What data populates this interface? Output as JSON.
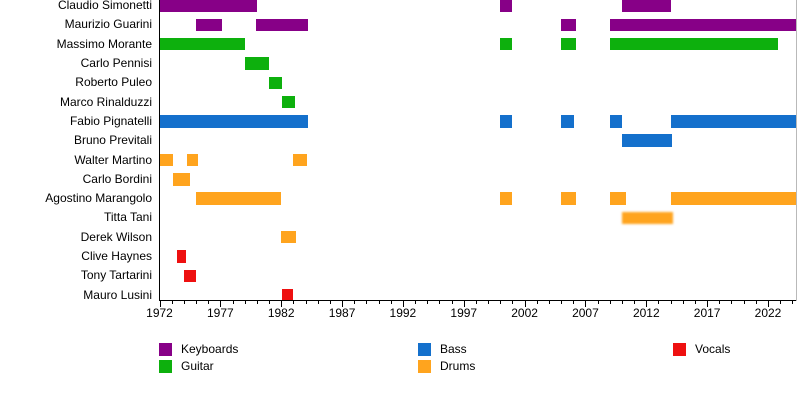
{
  "chart_data": {
    "type": "bar",
    "subtype": "band-membership-gantt-timeline",
    "title": "",
    "xlabel": "",
    "ylabel": "",
    "grid": false,
    "legend_position": "bottom",
    "x_axis": {
      "min": 1972,
      "max": 2024.3,
      "tick_years": [
        1972,
        1977,
        1982,
        1987,
        1992,
        1997,
        2002,
        2007,
        2012,
        2017,
        2022
      ],
      "minor_tick_step": 1
    },
    "colors": {
      "keyboards": "#870087",
      "guitar": "#0db00d",
      "bass": "#1470cc",
      "drums": "#ffa41e",
      "vocals": "#ee1010"
    },
    "legend": [
      {
        "label": "Keyboards",
        "instrument": "keyboards"
      },
      {
        "label": "Guitar",
        "instrument": "guitar"
      },
      {
        "label": "Bass",
        "instrument": "bass"
      },
      {
        "label": "Drums",
        "instrument": "drums"
      },
      {
        "label": "Vocals",
        "instrument": "vocals"
      }
    ],
    "members": [
      {
        "name": "Claudio Simonetti",
        "instrument": "keyboards",
        "periods": [
          [
            1972,
            1980
          ],
          [
            2000,
            2001
          ],
          [
            2010,
            2014
          ]
        ]
      },
      {
        "name": "Maurizio Guarini",
        "instrument": "keyboards",
        "periods": [
          [
            1975,
            1977.1
          ],
          [
            1979.9,
            1984.2
          ],
          [
            2005,
            2006.2
          ],
          [
            2009,
            2024.3
          ]
        ]
      },
      {
        "name": "Massimo Morante",
        "instrument": "guitar",
        "periods": [
          [
            1972,
            1979
          ],
          [
            2000,
            2001
          ],
          [
            2005,
            2006.2
          ],
          [
            2009,
            2022.8
          ]
        ]
      },
      {
        "name": "Carlo Pennisi",
        "instrument": "guitar",
        "periods": [
          [
            1979,
            1981
          ]
        ]
      },
      {
        "name": "Roberto Puleo",
        "instrument": "guitar",
        "periods": [
          [
            1981,
            1982.1
          ]
        ]
      },
      {
        "name": "Marco Rinalduzzi",
        "instrument": "guitar",
        "periods": [
          [
            1982.1,
            1983.1
          ]
        ]
      },
      {
        "name": "Fabio Pignatelli",
        "instrument": "bass",
        "periods": [
          [
            1972,
            1984.2
          ],
          [
            2000,
            2001
          ],
          [
            2005,
            2006.1
          ],
          [
            2009,
            2010
          ],
          [
            2014,
            2024.3
          ]
        ]
      },
      {
        "name": "Bruno Previtali",
        "instrument": "bass",
        "periods": [
          [
            2010,
            2014.1
          ]
        ]
      },
      {
        "name": "Walter Martino",
        "instrument": "drums",
        "periods": [
          [
            1972,
            1973.1
          ],
          [
            1974.3,
            1975.2
          ],
          [
            1983,
            1984.1
          ]
        ]
      },
      {
        "name": "Carlo Bordini",
        "instrument": "drums",
        "periods": [
          [
            1973.1,
            1974.5
          ]
        ]
      },
      {
        "name": "Agostino Marangolo",
        "instrument": "drums",
        "periods": [
          [
            1975,
            1982
          ],
          [
            2000,
            2001
          ],
          [
            2005,
            2006.2
          ],
          [
            2009,
            2010.3
          ],
          [
            2014,
            2024.3
          ]
        ]
      },
      {
        "name": "Titta Tani",
        "instrument": "drums",
        "periods": [
          [
            2010,
            2014.2
          ]
        ],
        "blurred": true
      },
      {
        "name": "Derek Wilson",
        "instrument": "drums",
        "periods": [
          [
            1982,
            1983.2
          ]
        ]
      },
      {
        "name": "Clive Haynes",
        "instrument": "vocals",
        "periods": [
          [
            1973.4,
            1974.2
          ]
        ]
      },
      {
        "name": "Tony Tartarini",
        "instrument": "vocals",
        "periods": [
          [
            1974,
            1975
          ]
        ]
      },
      {
        "name": "Mauro Lusini",
        "instrument": "vocals",
        "periods": [
          [
            1982.1,
            1983
          ]
        ]
      }
    ]
  }
}
